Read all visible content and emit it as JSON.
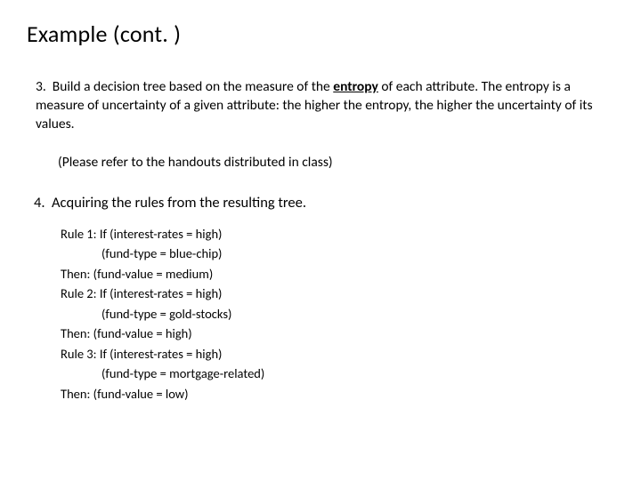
{
  "title": "Example (cont. )",
  "point3": {
    "number": "3.",
    "line_pre": "Build a decision tree based on the measure of the ",
    "entropy_word": "entropy",
    "line_post": " of each attribute. The entropy is a measure of uncertainty of a given attribute: the higher the entropy, the higher the uncertainty of its values."
  },
  "refer": "(Please refer to the handouts distributed in class)",
  "point4": {
    "number": "4.",
    "text": "Acquiring the rules from the resulting tree."
  },
  "rules": {
    "r1_head": "Rule 1: If (interest-rates = high)",
    "r1_cond": "(fund-type = blue-chip)",
    "r1_then": "Then: (fund-value = medium)",
    "r2_head": "Rule 2: If (interest-rates = high)",
    "r2_cond": "(fund-type = gold-stocks)",
    "r2_then": "Then: (fund-value = high)",
    "r3_head": "Rule 3: If (interest-rates = high)",
    "r3_cond": "(fund-type = mortgage-related)",
    "r3_then": "Then: (fund-value = low)"
  }
}
